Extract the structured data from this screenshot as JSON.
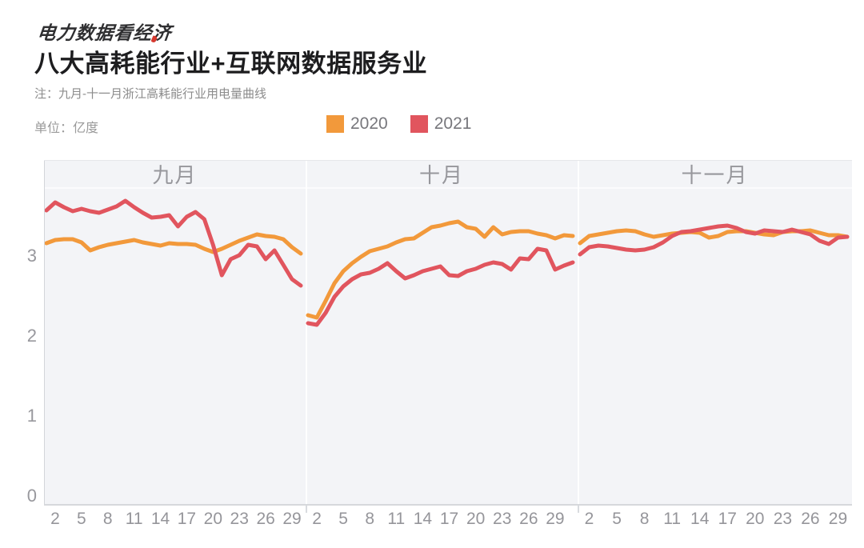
{
  "header": {
    "logo_main": "电力数据看经",
    "logo_accent": "济",
    "title": "八大高耗能行业+互联网数据服务业",
    "note": "注：九月-十一月浙江高耗能行业用电量曲线",
    "unit_label": "单位：亿度"
  },
  "legend": {
    "items": [
      {
        "label": "2020",
        "color": "#F2993B"
      },
      {
        "label": "2021",
        "color": "#E1555E"
      }
    ]
  },
  "chart_data": {
    "type": "line",
    "title": "八大高耗能行业+互联网数据服务业",
    "subtitle": "九月-十一月浙江高耗能行业用电量曲线",
    "ylabel": "亿度",
    "ylim": [
      0,
      4
    ],
    "yticks": [
      0,
      1,
      2,
      3
    ],
    "xticks": [
      2,
      5,
      8,
      11,
      14,
      17,
      20,
      23,
      26,
      29
    ],
    "grid": false,
    "legend_position": "top",
    "panel_labels": [
      "九月",
      "十月",
      "十一月"
    ],
    "panels": [
      {
        "label": "九月",
        "days": 30,
        "series": [
          {
            "name": "2020",
            "color": "#F2993B",
            "values": [
              3.17,
              3.21,
              3.22,
              3.22,
              3.18,
              3.08,
              3.12,
              3.15,
              3.17,
              3.19,
              3.21,
              3.18,
              3.16,
              3.14,
              3.17,
              3.16,
              3.16,
              3.15,
              3.1,
              3.06,
              3.1,
              3.15,
              3.2,
              3.24,
              3.28,
              3.26,
              3.25,
              3.22,
              3.12,
              3.04
            ]
          },
          {
            "name": "2021",
            "color": "#E1555E",
            "values": [
              3.58,
              3.68,
              3.62,
              3.57,
              3.6,
              3.57,
              3.55,
              3.59,
              3.63,
              3.7,
              3.62,
              3.55,
              3.49,
              3.5,
              3.52,
              3.38,
              3.5,
              3.56,
              3.47,
              3.15,
              2.77,
              2.97,
              3.02,
              3.15,
              3.13,
              2.97,
              3.08,
              2.9,
              2.72,
              2.64
            ]
          }
        ]
      },
      {
        "label": "十月",
        "days": 31,
        "series": [
          {
            "name": "2020",
            "color": "#F2993B",
            "values": [
              2.27,
              2.24,
              2.45,
              2.67,
              2.82,
              2.92,
              3.0,
              3.07,
              3.1,
              3.13,
              3.18,
              3.22,
              3.23,
              3.3,
              3.37,
              3.39,
              3.42,
              3.44,
              3.37,
              3.35,
              3.25,
              3.37,
              3.28,
              3.31,
              3.32,
              3.32,
              3.29,
              3.27,
              3.23,
              3.27,
              3.26
            ]
          },
          {
            "name": "2021",
            "color": "#E1555E",
            "values": [
              2.17,
              2.15,
              2.3,
              2.5,
              2.63,
              2.72,
              2.78,
              2.8,
              2.85,
              2.92,
              2.82,
              2.73,
              2.77,
              2.82,
              2.85,
              2.88,
              2.77,
              2.76,
              2.82,
              2.85,
              2.9,
              2.93,
              2.91,
              2.84,
              2.98,
              2.97,
              3.1,
              3.08,
              2.84,
              2.89,
              2.93
            ]
          }
        ]
      },
      {
        "label": "十一月",
        "days": 30,
        "series": [
          {
            "name": "2020",
            "color": "#F2993B",
            "values": [
              3.17,
              3.26,
              3.28,
              3.3,
              3.32,
              3.33,
              3.32,
              3.28,
              3.25,
              3.27,
              3.29,
              3.3,
              3.31,
              3.3,
              3.24,
              3.26,
              3.31,
              3.32,
              3.32,
              3.3,
              3.28,
              3.27,
              3.31,
              3.32,
              3.32,
              3.33,
              3.3,
              3.27,
              3.27,
              3.25
            ]
          },
          {
            "name": "2021",
            "color": "#E1555E",
            "values": [
              3.03,
              3.12,
              3.14,
              3.13,
              3.11,
              3.09,
              3.08,
              3.09,
              3.12,
              3.18,
              3.26,
              3.31,
              3.32,
              3.34,
              3.36,
              3.38,
              3.39,
              3.36,
              3.31,
              3.29,
              3.33,
              3.32,
              3.31,
              3.34,
              3.31,
              3.28,
              3.2,
              3.16,
              3.24,
              3.25
            ]
          }
        ]
      }
    ]
  },
  "colors": {
    "panel_bg": "#F3F4F7",
    "axis_line": "#D6D8DC",
    "separator": "#FFFFFF",
    "month_label": "#97979C",
    "tick_label": "#95959A",
    "note_text": "#8C8C8C",
    "legend_text": "#77777C",
    "title_text": "#1D1D1F",
    "logo_text": "#2F2F31",
    "logo_accent": "#D6382E",
    "line_2020": "#F2993B",
    "line_2021": "#E1555E"
  }
}
